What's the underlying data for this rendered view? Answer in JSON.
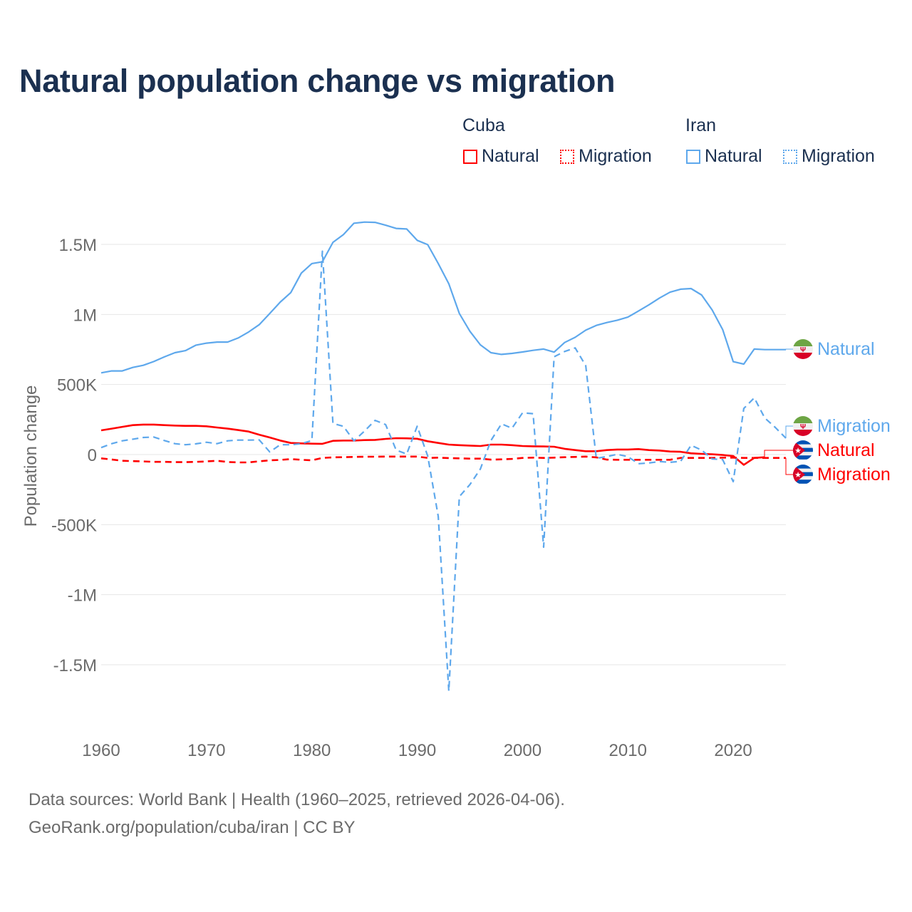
{
  "chart_data": {
    "type": "line",
    "title": "Natural population change vs migration",
    "xlabel": "",
    "ylabel": "Population change",
    "xlim": [
      1960,
      2025
    ],
    "ylim": [
      -1800000,
      1750000
    ],
    "grid": true,
    "legend_placement": "top-right",
    "x_ticks": [
      1960,
      1970,
      1980,
      1990,
      2000,
      2010,
      2020
    ],
    "x_tick_labels": [
      "1960",
      "1970",
      "1980",
      "1990",
      "2000",
      "2010",
      "2020"
    ],
    "y_ticks": [
      1500000,
      1000000,
      500000,
      0,
      -500000,
      -1000000,
      -1500000
    ],
    "y_tick_labels": [
      "1.5M",
      "1M",
      "500K",
      "0",
      "-500K",
      "-1M",
      "-1.5M"
    ],
    "legend_groups": [
      {
        "name": "Cuba",
        "items": [
          "Natural",
          "Migration"
        ]
      },
      {
        "name": "Iran",
        "items": [
          "Natural",
          "Migration"
        ]
      }
    ],
    "series": [
      {
        "name": "Iran Natural",
        "country": "Iran",
        "label": "Natural",
        "color": "#5ea8ec",
        "style": "solid",
        "start_year": 1960,
        "values": [
          583000,
          597000,
          597000,
          622000,
          637000,
          664000,
          697000,
          727000,
          742000,
          781000,
          795000,
          803000,
          803000,
          832000,
          875000,
          927000,
          1007000,
          1088000,
          1156000,
          1295000,
          1363000,
          1376000,
          1515000,
          1570000,
          1651000,
          1659000,
          1657000,
          1637000,
          1614000,
          1610000,
          1529000,
          1498000,
          1363000,
          1219000,
          1007000,
          880000,
          783000,
          727000,
          715000,
          722000,
          732000,
          744000,
          753000,
          731000,
          800000,
          837000,
          888000,
          922000,
          942000,
          959000,
          981000,
          1024000,
          1069000,
          1117000,
          1159000,
          1180000,
          1185000,
          1139000,
          1032000,
          892000,
          663000,
          646000,
          753000,
          749000,
          749000,
          749000
        ]
      },
      {
        "name": "Iran Migration",
        "country": "Iran",
        "label": "Migration",
        "color": "#5ea8ec",
        "style": "dashed",
        "start_year": 1960,
        "values": [
          50000,
          78000,
          98000,
          110000,
          122000,
          125000,
          100000,
          78000,
          70000,
          77000,
          88000,
          78000,
          98000,
          103000,
          103000,
          105000,
          19000,
          70000,
          70000,
          78000,
          100000,
          1451000,
          222000,
          202000,
          98000,
          168000,
          244000,
          214000,
          32000,
          4000,
          202000,
          -10000,
          -442000,
          -1688000,
          -300000,
          -214000,
          -103000,
          100000,
          219000,
          188000,
          298000,
          292000,
          -661000,
          698000,
          736000,
          761000,
          634000,
          -27000,
          -14000,
          2000,
          -14000,
          -65000,
          -60000,
          -50000,
          -55000,
          -49000,
          66000,
          32000,
          -31000,
          -36000,
          -193000,
          329000,
          405000,
          261000,
          193000,
          117000
        ]
      },
      {
        "name": "Cuba Natural",
        "country": "Cuba",
        "label": "Natural",
        "color": "#ff0000",
        "style": "solid",
        "start_year": 1960,
        "values": [
          173000,
          185000,
          198000,
          210000,
          214000,
          214000,
          210000,
          207000,
          205000,
          205000,
          202000,
          193000,
          185000,
          175000,
          164000,
          142000,
          122000,
          100000,
          83000,
          80000,
          78000,
          77000,
          98000,
          100000,
          100000,
          103000,
          105000,
          112000,
          117000,
          116000,
          113000,
          95000,
          83000,
          71000,
          67000,
          64000,
          61000,
          71000,
          71000,
          67000,
          61000,
          59000,
          58000,
          56000,
          41000,
          32000,
          24000,
          24000,
          32000,
          36000,
          36000,
          39000,
          32000,
          29000,
          22000,
          20000,
          9000,
          5000,
          2000,
          -3000,
          -10000,
          -73000,
          -24000,
          -19000
        ]
      },
      {
        "name": "Cuba Migration",
        "country": "Cuba",
        "label": "Migration",
        "color": "#ff0000",
        "style": "dashed",
        "start_year": 1960,
        "values": [
          -27000,
          -35000,
          -44000,
          -47000,
          -49000,
          -52000,
          -52000,
          -54000,
          -54000,
          -52000,
          -49000,
          -44000,
          -53000,
          -56000,
          -56000,
          -48000,
          -41000,
          -38000,
          -32000,
          -37000,
          -41000,
          -24000,
          -20000,
          -19000,
          -17000,
          -15000,
          -15000,
          -14000,
          -14000,
          -14000,
          -14000,
          -24000,
          -22000,
          -25000,
          -27000,
          -29000,
          -29000,
          -36000,
          -34000,
          -31000,
          -24000,
          -22000,
          -24000,
          -22000,
          -19000,
          -17000,
          -14000,
          -20000,
          -36000,
          -37000,
          -37000,
          -37000,
          -37000,
          -37000,
          -37000,
          -24000,
          -24000,
          -24000,
          -24000,
          -22000,
          -22000,
          -24000,
          -24000,
          -24000,
          -24000,
          -24000
        ]
      }
    ]
  },
  "legend": {
    "cuba": {
      "title": "Cuba",
      "natural": "Natural",
      "migration": "Migration"
    },
    "iran": {
      "title": "Iran",
      "natural": "Natural",
      "migration": "Migration"
    }
  },
  "end_labels": {
    "iran_natural": "Natural",
    "iran_migration": "Migration",
    "cuba_natural": "Natural",
    "cuba_migration": "Migration"
  },
  "colors": {
    "cuba": "#ff0000",
    "iran": "#5ea8ec",
    "title": "#1b3050",
    "grid": "#e6e6e6"
  },
  "footer": {
    "line1": "Data sources: World Bank | Health (1960–2025, retrieved 2026-04-06).",
    "line2": "GeoRank.org/population/cuba/iran | CC BY"
  }
}
